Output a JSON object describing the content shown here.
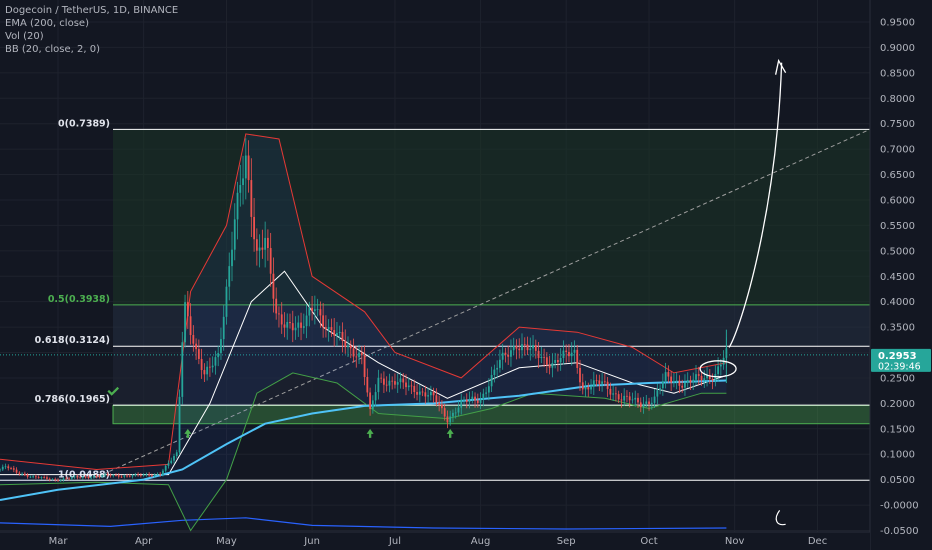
{
  "legend": {
    "title": "Dogecoin / TetherUS, 1D, BINANCE",
    "ema": "EMA (200, close)",
    "vol": "Vol (20)",
    "bb": "BB (20, close, 2, 0)"
  },
  "price_axis": {
    "ticks": [
      "0.9500",
      "0.9000",
      "0.8500",
      "0.8000",
      "0.7500",
      "0.7000",
      "0.6500",
      "0.6000",
      "0.5500",
      "0.5000",
      "0.4500",
      "0.4000",
      "0.3500",
      "0.3000",
      "0.2500",
      "0.2000",
      "0.1500",
      "0.1000",
      "0.0500",
      "-0.0000",
      "-0.0500"
    ],
    "tick_values": [
      0.95,
      0.9,
      0.85,
      0.8,
      0.75,
      0.7,
      0.65,
      0.6,
      0.55,
      0.5,
      0.45,
      0.4,
      0.35,
      0.3,
      0.25,
      0.2,
      0.15,
      0.1,
      0.05,
      0.0,
      -0.05
    ],
    "last_price": "0.2953",
    "countdown": "02:39:46"
  },
  "time_axis": {
    "labels": [
      "Mar",
      "Apr",
      "May",
      "Jun",
      "Jul",
      "Aug",
      "Sep",
      "Oct",
      "Nov",
      "Dec"
    ]
  },
  "colors": {
    "background": "#131722",
    "up": "#26a69a",
    "down": "#ef5350",
    "ema": "#4fc3f7",
    "bb_upper": "#e53935",
    "bb_lower": "#43a047",
    "bb_basis": "#ffffff",
    "fib_line": "#ffffff",
    "fib_05": "#4caf50",
    "support_zone": "#4caf50",
    "volume": "#2962ff",
    "price_badge": "#26a69a"
  },
  "chart_data": {
    "type": "candlestick",
    "title": "Dogecoin / TetherUS, 1D, BINANCE",
    "ylim": [
      -0.06,
      0.97
    ],
    "x_range": [
      "2021-02-08",
      "2021-12-20"
    ],
    "fib_levels": [
      {
        "ratio": "0",
        "price": 0.7389,
        "label": "0(0.7389)"
      },
      {
        "ratio": "0.5",
        "price": 0.3938,
        "label": "0.5(0.3938)"
      },
      {
        "ratio": "0.618",
        "price": 0.3124,
        "label": "0.618(0.3124)"
      },
      {
        "ratio": "0.786",
        "price": 0.1965,
        "label": "0.786(0.1965)"
      },
      {
        "ratio": "1",
        "price": 0.0488,
        "label": "1(0.0488)"
      }
    ],
    "support_zone": [
      0.16,
      0.196
    ],
    "price_path": [
      [
        "2021-02-08",
        0.07
      ],
      [
        "2021-02-10",
        0.075
      ],
      [
        "2021-02-14",
        0.065
      ],
      [
        "2021-02-20",
        0.055
      ],
      [
        "2021-02-28",
        0.05
      ],
      [
        "2021-03-10",
        0.055
      ],
      [
        "2021-03-20",
        0.058
      ],
      [
        "2021-03-31",
        0.058
      ],
      [
        "2021-04-07",
        0.062
      ],
      [
        "2021-04-13",
        0.1
      ],
      [
        "2021-04-15",
        0.33
      ],
      [
        "2021-04-16",
        0.4
      ],
      [
        "2021-04-20",
        0.3
      ],
      [
        "2021-04-23",
        0.25
      ],
      [
        "2021-04-28",
        0.3
      ],
      [
        "2021-05-04",
        0.55
      ],
      [
        "2021-05-06",
        0.62
      ],
      [
        "2021-05-08",
        0.68
      ],
      [
        "2021-05-12",
        0.5
      ],
      [
        "2021-05-15",
        0.52
      ],
      [
        "2021-05-19",
        0.37
      ],
      [
        "2021-05-24",
        0.36
      ],
      [
        "2021-05-28",
        0.34
      ],
      [
        "2021-06-02",
        0.4
      ],
      [
        "2021-06-07",
        0.34
      ],
      [
        "2021-06-13",
        0.32
      ],
      [
        "2021-06-19",
        0.29
      ],
      [
        "2021-06-22",
        0.18
      ],
      [
        "2021-06-25",
        0.25
      ],
      [
        "2021-07-01",
        0.24
      ],
      [
        "2021-07-08",
        0.23
      ],
      [
        "2021-07-15",
        0.21
      ],
      [
        "2021-07-20",
        0.17
      ],
      [
        "2021-07-25",
        0.2
      ],
      [
        "2021-08-01",
        0.21
      ],
      [
        "2021-08-08",
        0.28
      ],
      [
        "2021-08-14",
        0.32
      ],
      [
        "2021-08-20",
        0.3
      ],
      [
        "2021-08-27",
        0.28
      ],
      [
        "2021-09-04",
        0.3
      ],
      [
        "2021-09-07",
        0.23
      ],
      [
        "2021-09-14",
        0.24
      ],
      [
        "2021-09-21",
        0.21
      ],
      [
        "2021-09-28",
        0.2
      ],
      [
        "2021-10-03",
        0.21
      ],
      [
        "2021-10-07",
        0.25
      ],
      [
        "2021-10-14",
        0.24
      ],
      [
        "2021-10-21",
        0.25
      ],
      [
        "2021-10-25",
        0.26
      ],
      [
        "2021-10-28",
        0.29
      ],
      [
        "2021-10-29",
        0.2953
      ]
    ],
    "ema200": [
      [
        "2021-02-08",
        0.01
      ],
      [
        "2021-03-01",
        0.03
      ],
      [
        "2021-04-01",
        0.05
      ],
      [
        "2021-04-15",
        0.07
      ],
      [
        "2021-05-01",
        0.12
      ],
      [
        "2021-05-15",
        0.16
      ],
      [
        "2021-06-01",
        0.18
      ],
      [
        "2021-06-20",
        0.195
      ],
      [
        "2021-07-15",
        0.2
      ],
      [
        "2021-08-15",
        0.215
      ],
      [
        "2021-09-10",
        0.235
      ],
      [
        "2021-10-01",
        0.24
      ],
      [
        "2021-10-29",
        0.245
      ]
    ],
    "bb_upper": [
      [
        "2021-02-08",
        0.09
      ],
      [
        "2021-03-15",
        0.07
      ],
      [
        "2021-04-10",
        0.08
      ],
      [
        "2021-04-18",
        0.42
      ],
      [
        "2021-05-01",
        0.55
      ],
      [
        "2021-05-08",
        0.73
      ],
      [
        "2021-05-20",
        0.72
      ],
      [
        "2021-06-01",
        0.45
      ],
      [
        "2021-06-20",
        0.38
      ],
      [
        "2021-07-01",
        0.3
      ],
      [
        "2021-07-25",
        0.25
      ],
      [
        "2021-08-15",
        0.35
      ],
      [
        "2021-09-05",
        0.34
      ],
      [
        "2021-09-25",
        0.31
      ],
      [
        "2021-10-10",
        0.26
      ],
      [
        "2021-10-29",
        0.28
      ]
    ],
    "bb_lower": [
      [
        "2021-02-08",
        0.04
      ],
      [
        "2021-03-15",
        0.045
      ],
      [
        "2021-04-10",
        0.04
      ],
      [
        "2021-04-18",
        -0.05
      ],
      [
        "2021-05-01",
        0.05
      ],
      [
        "2021-05-12",
        0.22
      ],
      [
        "2021-05-25",
        0.26
      ],
      [
        "2021-06-10",
        0.24
      ],
      [
        "2021-06-25",
        0.18
      ],
      [
        "2021-07-20",
        0.17
      ],
      [
        "2021-08-05",
        0.19
      ],
      [
        "2021-08-20",
        0.22
      ],
      [
        "2021-09-15",
        0.21
      ],
      [
        "2021-10-01",
        0.19
      ],
      [
        "2021-10-20",
        0.22
      ],
      [
        "2021-10-29",
        0.22
      ]
    ],
    "bb_basis": [
      [
        "2021-02-08",
        0.06
      ],
      [
        "2021-04-10",
        0.06
      ],
      [
        "2021-04-25",
        0.2
      ],
      [
        "2021-05-10",
        0.4
      ],
      [
        "2021-05-22",
        0.46
      ],
      [
        "2021-06-05",
        0.35
      ],
      [
        "2021-06-25",
        0.28
      ],
      [
        "2021-07-20",
        0.21
      ],
      [
        "2021-08-15",
        0.27
      ],
      [
        "2021-09-05",
        0.28
      ],
      [
        "2021-09-25",
        0.24
      ],
      [
        "2021-10-10",
        0.22
      ],
      [
        "2021-10-29",
        0.255
      ]
    ],
    "volume_path": [
      [
        "2021-02-08",
        -0.035
      ],
      [
        "2021-03-20",
        -0.042
      ],
      [
        "2021-04-15",
        -0.03
      ],
      [
        "2021-05-08",
        -0.025
      ],
      [
        "2021-06-01",
        -0.04
      ],
      [
        "2021-07-15",
        -0.045
      ],
      [
        "2021-09-01",
        -0.047
      ],
      [
        "2021-10-29",
        -0.045
      ]
    ],
    "markers": [
      {
        "type": "up-arrow",
        "date": "2021-04-17",
        "price": 0.14
      },
      {
        "type": "up-arrow",
        "date": "2021-06-22",
        "price": 0.14
      },
      {
        "type": "up-arrow",
        "date": "2021-07-21",
        "price": 0.14
      },
      {
        "type": "checkmark",
        "date": "2021-03-21",
        "price": 0.225
      }
    ],
    "projection": {
      "from": [
        "2021-10-30",
        0.31
      ],
      "to": [
        "2021-11-18",
        0.87
      ]
    }
  }
}
